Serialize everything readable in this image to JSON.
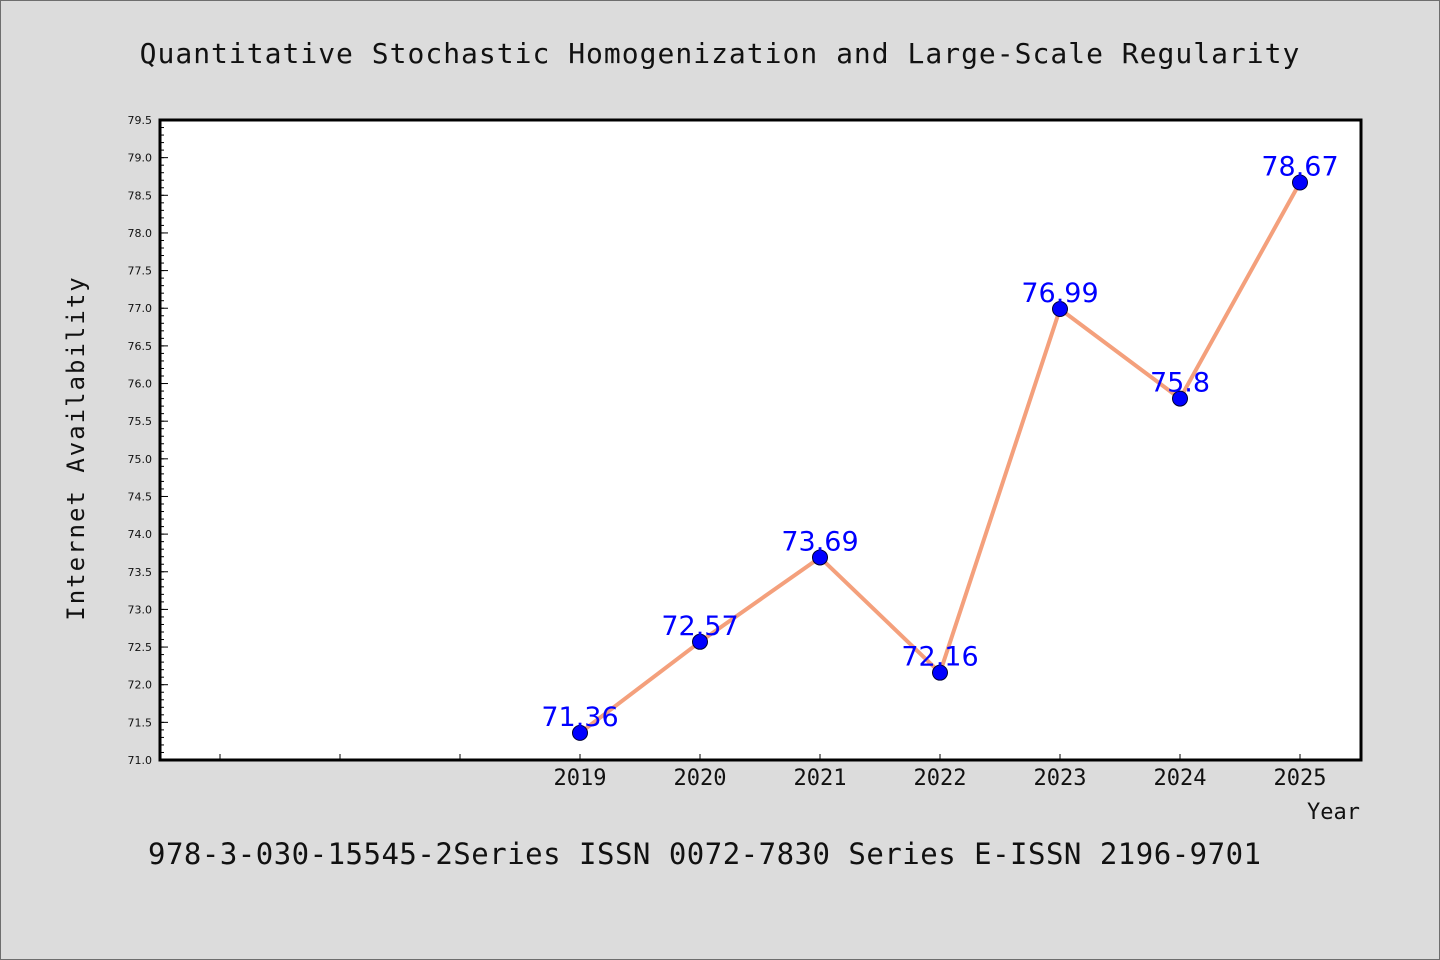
{
  "chart_data": {
    "type": "line",
    "title": "Quantitative Stochastic Homogenization and Large-Scale Regularity",
    "xlabel": "Year",
    "ylabel": "Internet Availability",
    "x": [
      "2019",
      "2020",
      "2021",
      "2022",
      "2023",
      "2024",
      "2025"
    ],
    "series": [
      {
        "values": [
          71.36,
          72.57,
          73.69,
          72.16,
          76.99,
          75.8,
          78.67
        ]
      }
    ],
    "data_labels": [
      "71.36",
      "72.57",
      "73.69",
      "72.16",
      "76.99",
      "75.8",
      "78.67"
    ],
    "ylim": [
      71.0,
      79.5
    ],
    "ytick_labels": [
      "71.0",
      "71.5",
      "72.0",
      "72.5",
      "73.0",
      "73.5",
      "74.0",
      "74.5",
      "75.0",
      "75.5",
      "76.0",
      "76.5",
      "77.0",
      "77.5",
      "78.0",
      "78.5",
      "79.0",
      "79.5"
    ],
    "grid": false,
    "line_color": "#f4a07c",
    "marker_color": "#0000ff",
    "label_color": "#0000ff",
    "footer": "978-3-030-15545-2Series ISSN 0072-7830 Series E-ISSN 2196-9701"
  }
}
